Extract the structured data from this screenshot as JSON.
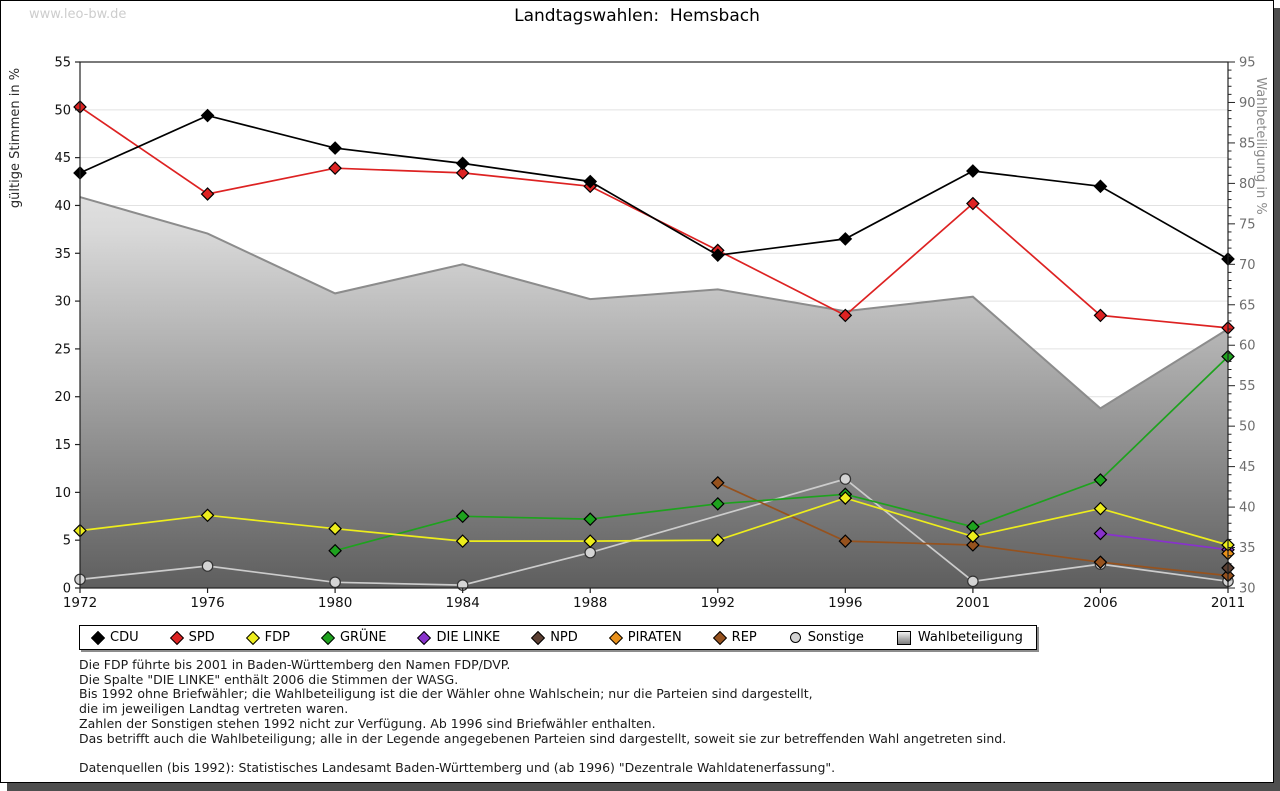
{
  "watermark": "www.leo-bw.de",
  "title": "Landtagswahlen:  Hemsbach",
  "chart_data": {
    "type": "line",
    "title": "Landtagswahlen: Hemsbach",
    "x": [
      1972,
      1976,
      1980,
      1984,
      1988,
      1992,
      1996,
      2001,
      2006,
      2011
    ],
    "left_axis": {
      "label": "gültige Stimmen in %",
      "min": 0,
      "max": 55,
      "tick_step": 5
    },
    "right_axis": {
      "label": "Wahlbeteiligung in %",
      "min": 30,
      "max": 95,
      "tick_step": 5,
      "minor_step": 1
    },
    "grid": "horizontal",
    "legend_position": "bottom",
    "series": [
      {
        "name": "CDU",
        "color": "#000000",
        "marker": "diamond",
        "axis": "left",
        "values": [
          43.4,
          49.4,
          46.0,
          44.4,
          42.5,
          34.8,
          36.5,
          43.6,
          42.0,
          34.4
        ]
      },
      {
        "name": "SPD",
        "color": "#dd2222",
        "marker": "diamond",
        "axis": "left",
        "values": [
          50.3,
          41.2,
          43.9,
          43.4,
          42.0,
          35.3,
          28.5,
          40.2,
          28.5,
          27.2
        ]
      },
      {
        "name": "FDP",
        "color": "#eded1c",
        "marker": "diamond",
        "axis": "left",
        "values": [
          6.0,
          7.6,
          6.2,
          4.9,
          4.9,
          5.0,
          9.4,
          5.4,
          8.3,
          4.5
        ]
      },
      {
        "name": "GRÜNE",
        "color": "#1ea21e",
        "marker": "diamond",
        "axis": "left",
        "values": [
          null,
          null,
          3.9,
          7.5,
          7.2,
          8.8,
          9.8,
          6.4,
          11.3,
          24.2
        ]
      },
      {
        "name": "DIE LINKE",
        "color": "#8832cc",
        "marker": "diamond",
        "axis": "left",
        "values": [
          null,
          null,
          null,
          null,
          null,
          null,
          null,
          null,
          5.7,
          4.0
        ]
      },
      {
        "name": "NPD",
        "color": "#5c4033",
        "marker": "diamond",
        "axis": "left",
        "values": [
          null,
          null,
          null,
          null,
          null,
          null,
          null,
          null,
          null,
          2.1
        ]
      },
      {
        "name": "PIRATEN",
        "color": "#e8901a",
        "marker": "diamond",
        "axis": "left",
        "values": [
          null,
          null,
          null,
          null,
          null,
          null,
          null,
          null,
          null,
          3.6
        ]
      },
      {
        "name": "REP",
        "color": "#96521e",
        "marker": "diamond",
        "axis": "left",
        "values": [
          null,
          null,
          null,
          null,
          null,
          11.0,
          4.9,
          4.5,
          2.7,
          1.3
        ]
      },
      {
        "name": "Sonstige",
        "color": "#cccccc",
        "marker": "circle",
        "axis": "left",
        "values": [
          0.9,
          2.3,
          0.6,
          0.3,
          3.7,
          null,
          11.4,
          0.7,
          2.5,
          0.7
        ]
      }
    ],
    "area_series": {
      "name": "Wahlbeteiligung",
      "axis": "right",
      "type": "area",
      "line_color": "#8c8c8c",
      "fill_top": "#fafafa",
      "fill_bottom": "#5e5e5e",
      "values": [
        78.3,
        73.8,
        66.4,
        70.0,
        65.7,
        66.9,
        64.2,
        66.0,
        52.2,
        62.0
      ]
    },
    "draw_order": [
      8,
      7,
      5,
      4,
      6,
      3,
      2,
      1,
      0
    ]
  },
  "footnotes": [
    "Die FDP führte bis 2001 in Baden-Württemberg den Namen FDP/DVP.",
    "Die Spalte \"DIE LINKE\" enthält 2006 die Stimmen der WASG.",
    "Bis 1992 ohne Briefwähler; die Wahlbeteiligung ist die der Wähler ohne Wahlschein; nur die Parteien sind dargestellt,",
    "die im jeweiligen Landtag vertreten waren.",
    "Zahlen der Sonstigen stehen 1992 nicht zur Verfügung. Ab 1996 sind Briefwähler enthalten.",
    "Das betrifft auch die Wahlbeteiligung; alle in der Legende angegebenen Parteien sind dargestellt, soweit sie zur betreffenden Wahl angetreten sind.",
    "",
    "Datenquellen (bis 1992): Statistisches Landesamt Baden-Württemberg und (ab 1996) \"Dezentrale Wahldatenerfassung\"."
  ],
  "colors": {
    "shadow": "#4e4e4e",
    "grid": "#e2e2e2",
    "frame": "#222222",
    "left_tick_label": "#111111",
    "right_tick_label": "#6e6e6e",
    "left_axis_title": "#2a2a2a",
    "right_axis_title": "#8a8a8a",
    "year_label": "#111111",
    "watermark": "#cdcdcd"
  }
}
